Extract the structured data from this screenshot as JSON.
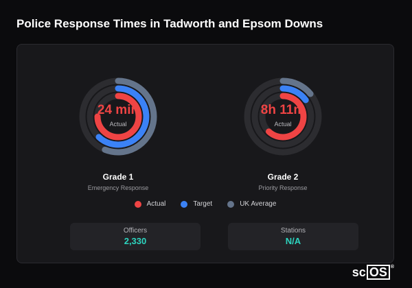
{
  "title": "Police Response Times in Tadworth and Epsom Downs",
  "colors": {
    "actual": "#ef4444",
    "target": "#3b82f6",
    "uk_average": "#64748b",
    "track": "#2c2c30",
    "stat_value": "#2dd4bf"
  },
  "gauges": [
    {
      "value": "24 min",
      "sub": "Actual",
      "name": "Grade 1",
      "description": "Emergency Response",
      "rings": {
        "actual": 0.75,
        "target": 0.62,
        "uk_average": 0.56
      }
    },
    {
      "value": "8h 11m",
      "sub": "Actual",
      "name": "Grade 2",
      "description": "Priority Response",
      "rings": {
        "actual": 0.62,
        "target": 0.15,
        "uk_average": 0.14
      }
    }
  ],
  "legend": [
    {
      "label": "Actual",
      "color": "#ef4444"
    },
    {
      "label": "Target",
      "color": "#3b82f6"
    },
    {
      "label": "UK Average",
      "color": "#64748b"
    }
  ],
  "stats": [
    {
      "label": "Officers",
      "value": "2,330"
    },
    {
      "label": "Stations",
      "value": "N/A"
    }
  ],
  "brand": {
    "prefix": "sc",
    "box": "OS",
    "mark": "®"
  }
}
